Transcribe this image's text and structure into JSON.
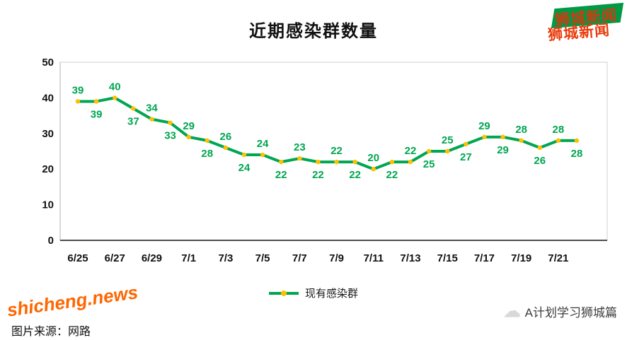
{
  "logo": {
    "text": "狮城新闻",
    "text_color": "#ea3b0c",
    "bg_color": "#009944"
  },
  "title": "近期感染群数量",
  "chart_data": {
    "type": "line",
    "title": "近期感染群数量",
    "x": [
      "6/25",
      "6/26",
      "6/27",
      "6/28",
      "6/29",
      "6/30",
      "7/1",
      "7/2",
      "7/3",
      "7/4",
      "7/5",
      "7/6",
      "7/7",
      "7/8",
      "7/9",
      "7/10",
      "7/11",
      "7/12",
      "7/13",
      "7/14",
      "7/15",
      "7/16",
      "7/17",
      "7/18",
      "7/19",
      "7/20",
      "7/21",
      "7/22"
    ],
    "x_tick_labels": [
      "6/25",
      "6/27",
      "6/29",
      "7/1",
      "7/3",
      "7/5",
      "7/7",
      "7/9",
      "7/11",
      "7/13",
      "7/15",
      "7/17",
      "7/19",
      "7/21"
    ],
    "series": [
      {
        "name": "现有感染群",
        "values": [
          39,
          39,
          40,
          37,
          34,
          33,
          29,
          28,
          26,
          24,
          24,
          22,
          23,
          22,
          22,
          22,
          20,
          22,
          22,
          25,
          25,
          27,
          29,
          29,
          28,
          26,
          28,
          28
        ]
      }
    ],
    "ylim": [
      0,
      50
    ],
    "yticks": [
      0,
      10,
      20,
      30,
      40,
      50
    ],
    "grid": false,
    "legend_position": "bottom",
    "line_color": "#00a651",
    "marker_color": "#ffc000",
    "label_color": "#00a651"
  },
  "legend": {
    "label": "现有感染群"
  },
  "watermark": {
    "site": "shicheng.news",
    "source_note": "图片来源：网路"
  },
  "footer": {
    "account": "A计划学习狮城篇",
    "icon": "cloud-icon"
  }
}
